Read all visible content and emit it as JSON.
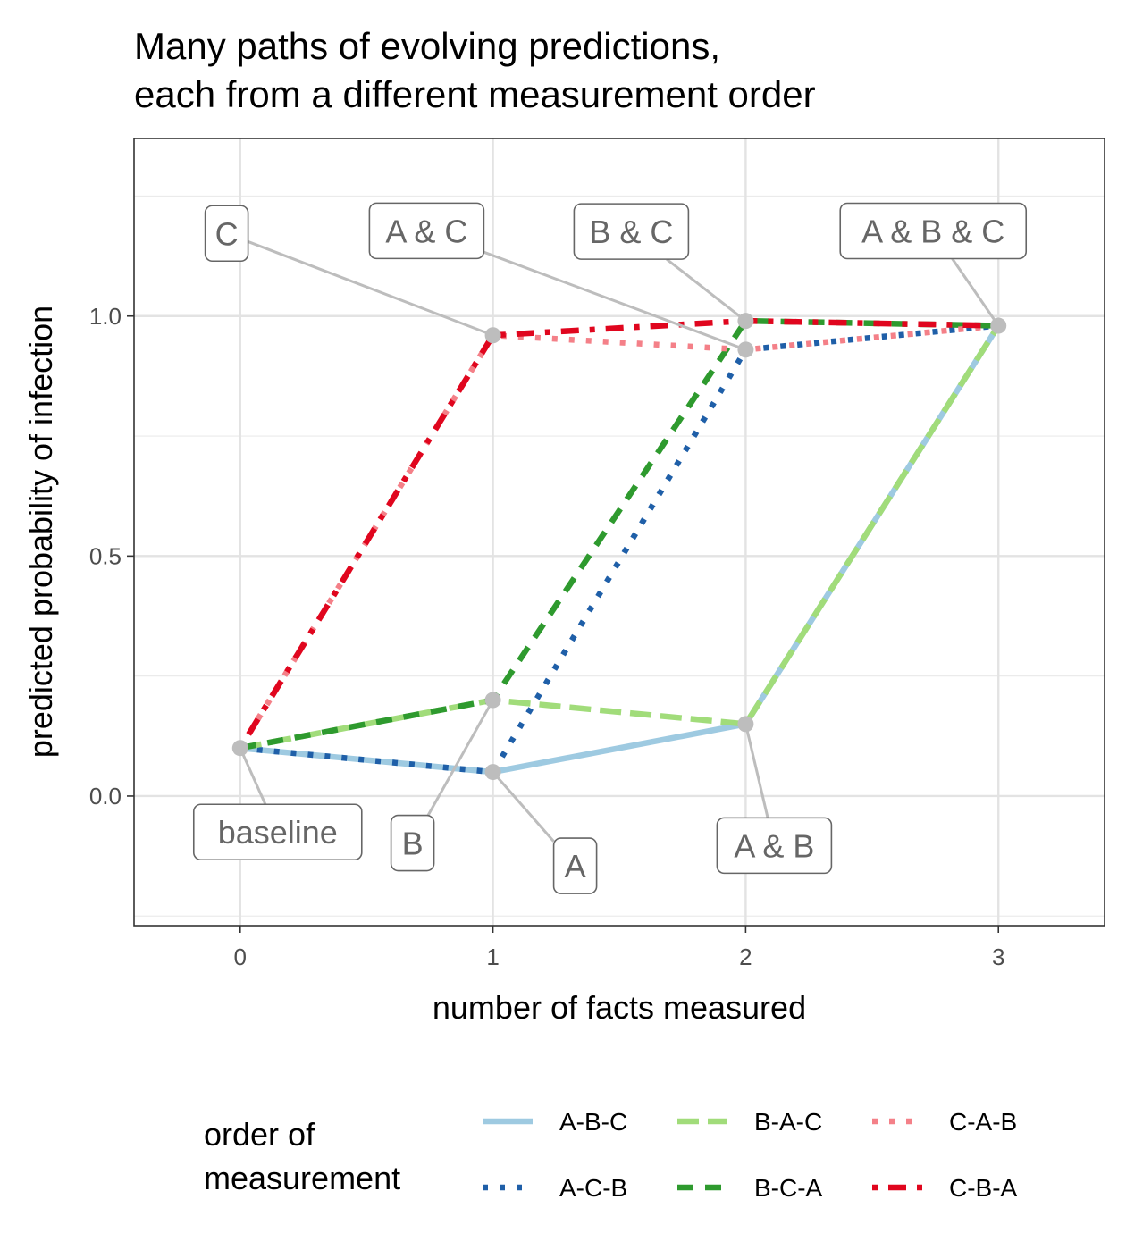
{
  "chart_data": {
    "type": "line",
    "title_line1": "Many paths of evolving predictions,",
    "title_line2": "each from a different measurement order",
    "xlabel": "number of facts measured",
    "ylabel": "predicted probability of infection",
    "xlim": [
      -0.42,
      3.42
    ],
    "ylim": [
      -0.27,
      1.37
    ],
    "x_ticks": [
      0,
      1,
      2,
      3
    ],
    "y_ticks": [
      0.0,
      0.5,
      1.0
    ],
    "y_tick_labels": [
      "0.0",
      "0.5",
      "1.0"
    ],
    "grid": true,
    "legend_title_line1": "order of",
    "legend_title_line2": "measurement",
    "legend_position": "bottom",
    "series": [
      {
        "name": "A-B-C",
        "color": "#9ecae1",
        "dash": "solid",
        "x": [
          0,
          1,
          2,
          3
        ],
        "values": [
          0.1,
          0.05,
          0.15,
          0.98
        ]
      },
      {
        "name": "A-C-B",
        "color": "#1f5fa8",
        "dash": "dotted",
        "x": [
          0,
          1,
          2,
          3
        ],
        "values": [
          0.1,
          0.05,
          0.93,
          0.98
        ]
      },
      {
        "name": "B-A-C",
        "color": "#a1dc7a",
        "dash": "longdash",
        "x": [
          0,
          1,
          2,
          3
        ],
        "values": [
          0.1,
          0.2,
          0.15,
          0.98
        ]
      },
      {
        "name": "B-C-A",
        "color": "#2e9a2e",
        "dash": "dashed",
        "x": [
          0,
          1,
          2,
          3
        ],
        "values": [
          0.1,
          0.2,
          0.99,
          0.98
        ]
      },
      {
        "name": "C-A-B",
        "color": "#f48088",
        "dash": "dotted",
        "x": [
          0,
          1,
          2,
          3
        ],
        "values": [
          0.1,
          0.96,
          0.93,
          0.98
        ]
      },
      {
        "name": "C-B-A",
        "color": "#e0061e",
        "dash": "dotdash",
        "x": [
          0,
          1,
          2,
          3
        ],
        "values": [
          0.1,
          0.96,
          0.99,
          0.98
        ]
      }
    ],
    "points": [
      {
        "label": "baseline",
        "x": 0,
        "y": 0.1
      },
      {
        "label": "A",
        "x": 1,
        "y": 0.05
      },
      {
        "label": "B",
        "x": 1,
        "y": 0.2
      },
      {
        "label": "C",
        "x": 1,
        "y": 0.96
      },
      {
        "label": "A & B",
        "x": 2,
        "y": 0.15
      },
      {
        "label": "A & C",
        "x": 2,
        "y": 0.93
      },
      {
        "label": "B & C",
        "x": 2,
        "y": 0.99
      },
      {
        "label": "A & B & C",
        "x": 3,
        "y": 0.98
      }
    ]
  }
}
